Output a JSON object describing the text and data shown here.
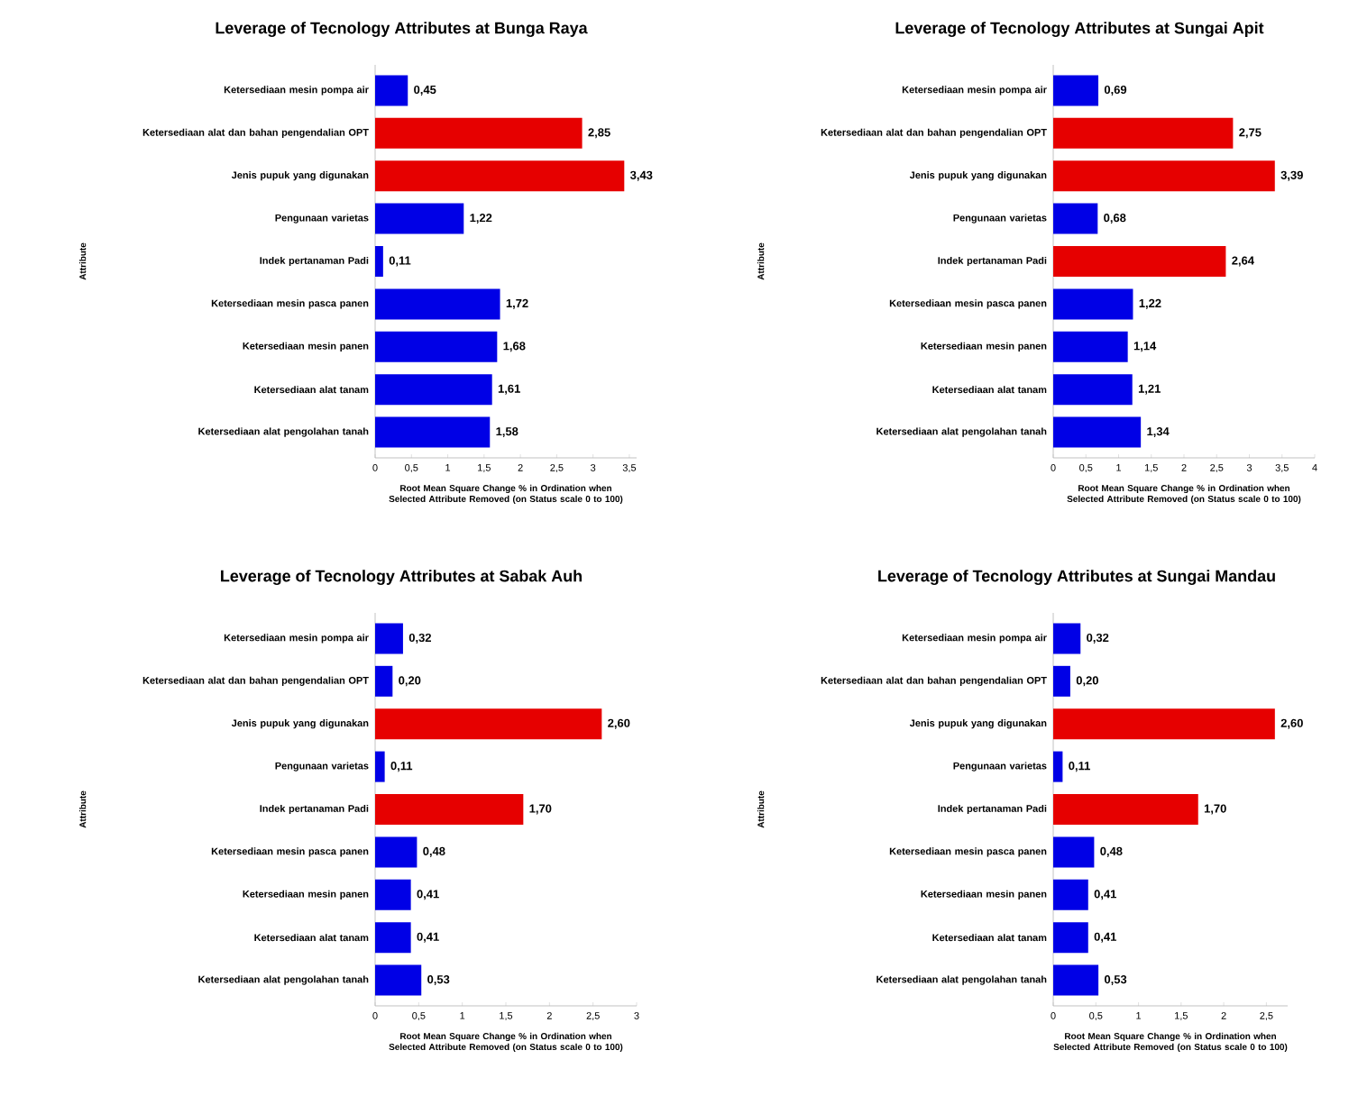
{
  "chart_data": [
    {
      "type": "bar",
      "orientation": "horizontal",
      "title": "Leverage of  Tecnology Attributes at Bunga Raya",
      "xlabel": "Root Mean Square Change % in Ordination when Selected Attribute Removed (on Status scale 0 to 100)",
      "ylabel": "Attribute",
      "categories": [
        "Ketersediaan mesin pompa air",
        "Ketersediaan alat dan bahan pengendalian OPT",
        "Jenis pupuk yang digunakan",
        "Pengunaan varietas",
        "Indek pertanaman Padi",
        "Ketersediaan mesin pasca panen",
        "Ketersediaan mesin panen",
        "Ketersediaan  alat tanam",
        "Ketersediaan alat pengolahan tanah"
      ],
      "values": [
        0.45,
        2.85,
        3.43,
        1.22,
        0.11,
        1.72,
        1.68,
        1.61,
        1.58
      ],
      "value_labels": [
        "0,45",
        "2,85",
        "3,43",
        "1,22",
        "0,11",
        "1,72",
        "1,68",
        "1,61",
        "1,58"
      ],
      "colors": [
        "#0000e6",
        "#e60000",
        "#e60000",
        "#0000e6",
        "#0000e6",
        "#0000e6",
        "#0000e6",
        "#0000e6",
        "#0000e6"
      ],
      "xlim": [
        0,
        3.6
      ],
      "xticks": [
        0,
        {
          "value": 0.5,
          "label": "0,5"
        },
        1,
        {
          "value": 1.5,
          "label": "1,5"
        },
        2,
        {
          "value": 2.5,
          "label": "2,5"
        },
        3,
        {
          "value": 3.5,
          "label": "3,5"
        }
      ]
    },
    {
      "type": "bar",
      "orientation": "horizontal",
      "title": "Leverage of Tecnology Attributes at Sungai Apit",
      "xlabel": "Root Mean Square Change % in Ordination when Selected Attribute Removed (on Status scale 0 to 100)",
      "ylabel": "Attribute",
      "categories": [
        "Ketersediaan mesin pompa air",
        "Ketersediaan alat dan bahan pengendalian OPT",
        "Jenis pupuk yang digunakan",
        "Pengunaan varietas",
        "Indek pertanaman Padi",
        "Ketersediaan mesin pasca panen",
        "Ketersediaan mesin panen",
        "Ketersediaan  alat tanam",
        "Ketersediaan alat pengolahan tanah"
      ],
      "values": [
        0.69,
        2.75,
        3.39,
        0.68,
        2.64,
        1.22,
        1.14,
        1.21,
        1.34
      ],
      "value_labels": [
        "0,69",
        "2,75",
        "3,39",
        "0,68",
        "2,64",
        "1,22",
        "1,14",
        "1,21",
        "1,34"
      ],
      "colors": [
        "#0000e6",
        "#e60000",
        "#e60000",
        "#0000e6",
        "#e60000",
        "#0000e6",
        "#0000e6",
        "#0000e6",
        "#0000e6"
      ],
      "xlim": [
        0,
        4
      ],
      "xticks": [
        0,
        {
          "value": 0.5,
          "label": "0,5"
        },
        1,
        {
          "value": 1.5,
          "label": "1,5"
        },
        2,
        {
          "value": 2.5,
          "label": "2,5"
        },
        3,
        {
          "value": 3.5,
          "label": "3,5"
        },
        4
      ]
    },
    {
      "type": "bar",
      "orientation": "horizontal",
      "title": "Leverage of Tecnology Attributes at Sabak Auh",
      "xlabel": "Root Mean Square Change % in Ordination when Selected Attribute Removed (on Status scale 0 to 100)",
      "ylabel": "Attribute",
      "categories": [
        "Ketersediaan mesin pompa air",
        "Ketersediaan alat dan bahan pengendalian OPT",
        "Jenis pupuk yang digunakan",
        "Pengunaan varietas",
        "Indek pertanaman Padi",
        "Ketersediaan mesin pasca panen",
        "Ketersediaan mesin panen",
        "Ketersediaan  alat tanam",
        "Ketersediaan alat pengolahan tanah"
      ],
      "values": [
        0.32,
        0.2,
        2.6,
        0.11,
        1.7,
        0.48,
        0.41,
        0.41,
        0.53
      ],
      "value_labels": [
        "0,32",
        "0,20",
        "2,60",
        "0,11",
        "1,70",
        "0,48",
        "0,41",
        "0,41",
        "0,53"
      ],
      "colors": [
        "#0000e6",
        "#0000e6",
        "#e60000",
        "#0000e6",
        "#e60000",
        "#0000e6",
        "#0000e6",
        "#0000e6",
        "#0000e6"
      ],
      "xlim": [
        0,
        3
      ],
      "xticks": [
        0,
        {
          "value": 0.5,
          "label": "0,5"
        },
        1,
        {
          "value": 1.5,
          "label": "1,5"
        },
        2,
        {
          "value": 2.5,
          "label": "2,5"
        },
        3
      ]
    },
    {
      "type": "bar",
      "orientation": "horizontal",
      "title": "Leverage of Tecnology Attributes at Sungai Mandau",
      "xlabel": "Root Mean Square Change % in Ordination when Selected Attribute Removed (on Status scale 0 to 100)",
      "ylabel": "Attribute",
      "categories": [
        "Ketersediaan mesin pompa air",
        "Ketersediaan alat dan bahan pengendalian OPT",
        "Jenis pupuk yang digunakan",
        "Pengunaan varietas",
        "Indek pertanaman Padi",
        "Ketersediaan mesin pasca panen",
        "Ketersediaan mesin panen",
        "Ketersediaan  alat tanam",
        "Ketersediaan alat pengolahan tanah"
      ],
      "values": [
        0.32,
        0.2,
        2.6,
        0.11,
        1.7,
        0.48,
        0.41,
        0.41,
        0.53
      ],
      "value_labels": [
        "0,32",
        "0,20",
        "2,60",
        "0,11",
        "1,70",
        "0,48",
        "0,41",
        "0,41",
        "0,53"
      ],
      "colors": [
        "#0000e6",
        "#0000e6",
        "#e60000",
        "#0000e6",
        "#e60000",
        "#0000e6",
        "#0000e6",
        "#0000e6",
        "#0000e6"
      ],
      "xlim": [
        0,
        2.75
      ],
      "xticks": [
        0,
        {
          "value": 0.5,
          "label": "0,5"
        },
        1,
        {
          "value": 1.5,
          "label": "1,5"
        },
        2,
        {
          "value": 2.5,
          "label": "2,5"
        }
      ]
    }
  ]
}
